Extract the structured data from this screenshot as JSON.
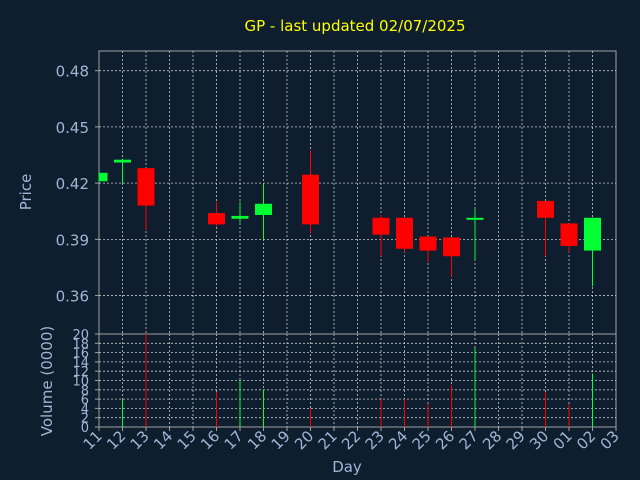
{
  "chart_data": {
    "type": "candlestick",
    "title": "GP - last updated 02/07/2025",
    "colors": {
      "background": "#0f1e2e",
      "axes": "#a0a0a0",
      "grid": "#c8c8c8",
      "up": "#00ff33",
      "down": "#ff0000",
      "title": "#ffff00",
      "labels": "#9fb6d6"
    },
    "price_panel": {
      "ylabel": "Price",
      "ylim": [
        0.3395,
        0.4905
      ],
      "yticks": [
        "0.36",
        "0.39",
        "0.42",
        "0.45",
        "0.48"
      ],
      "grid": true
    },
    "volume_panel": {
      "ylabel": "Volume (0000)",
      "ylim": [
        0,
        20
      ],
      "yticks": [
        "0",
        "2",
        "4",
        "6",
        "8",
        "10",
        "12",
        "14",
        "16",
        "18",
        "20"
      ],
      "grid": true
    },
    "xlabel": "Day",
    "x_ticks": [
      "11",
      "12",
      "13",
      "14",
      "15",
      "16",
      "17",
      "18",
      "19",
      "20",
      "21",
      "22",
      "23",
      "24",
      "25",
      "26",
      "27",
      "28",
      "29",
      "30",
      "01",
      "02",
      "03"
    ],
    "candles": [
      {
        "day": "11",
        "open": 0.421,
        "high": 0.4255,
        "low": 0.4205,
        "close": 0.4255,
        "volume": 0
      },
      {
        "day": "12",
        "open": 0.431,
        "high": 0.433,
        "low": 0.42,
        "close": 0.4325,
        "volume": 6
      },
      {
        "day": "13",
        "open": 0.428,
        "high": 0.428,
        "low": 0.395,
        "close": 0.408,
        "volume": 20
      },
      {
        "day": "16",
        "open": 0.404,
        "high": 0.41,
        "low": 0.397,
        "close": 0.398,
        "volume": 7.5
      },
      {
        "day": "17",
        "open": 0.401,
        "high": 0.41,
        "low": 0.399,
        "close": 0.4025,
        "volume": 10
      },
      {
        "day": "18",
        "open": 0.403,
        "high": 0.42,
        "low": 0.39,
        "close": 0.409,
        "volume": 8
      },
      {
        "day": "20",
        "open": 0.4245,
        "high": 0.4375,
        "low": 0.393,
        "close": 0.398,
        "volume": 4
      },
      {
        "day": "23",
        "open": 0.4015,
        "high": 0.403,
        "low": 0.381,
        "close": 0.3925,
        "volume": 6
      },
      {
        "day": "24",
        "open": 0.4015,
        "high": 0.4015,
        "low": 0.383,
        "close": 0.385,
        "volume": 6
      },
      {
        "day": "25",
        "open": 0.3915,
        "high": 0.3915,
        "low": 0.378,
        "close": 0.384,
        "volume": 5
      },
      {
        "day": "26",
        "open": 0.391,
        "high": 0.391,
        "low": 0.37,
        "close": 0.381,
        "volume": 9
      },
      {
        "day": "27",
        "open": 0.401,
        "high": 0.406,
        "low": 0.379,
        "close": 0.4015,
        "volume": 17
      },
      {
        "day": "30",
        "open": 0.4105,
        "high": 0.4105,
        "low": 0.381,
        "close": 0.4015,
        "volume": 7.5
      },
      {
        "day": "01",
        "open": 0.3985,
        "high": 0.3985,
        "low": 0.383,
        "close": 0.3865,
        "volume": 5
      },
      {
        "day": "02",
        "open": 0.384,
        "high": 0.4015,
        "low": 0.365,
        "close": 0.4015,
        "volume": 11.5
      }
    ]
  }
}
